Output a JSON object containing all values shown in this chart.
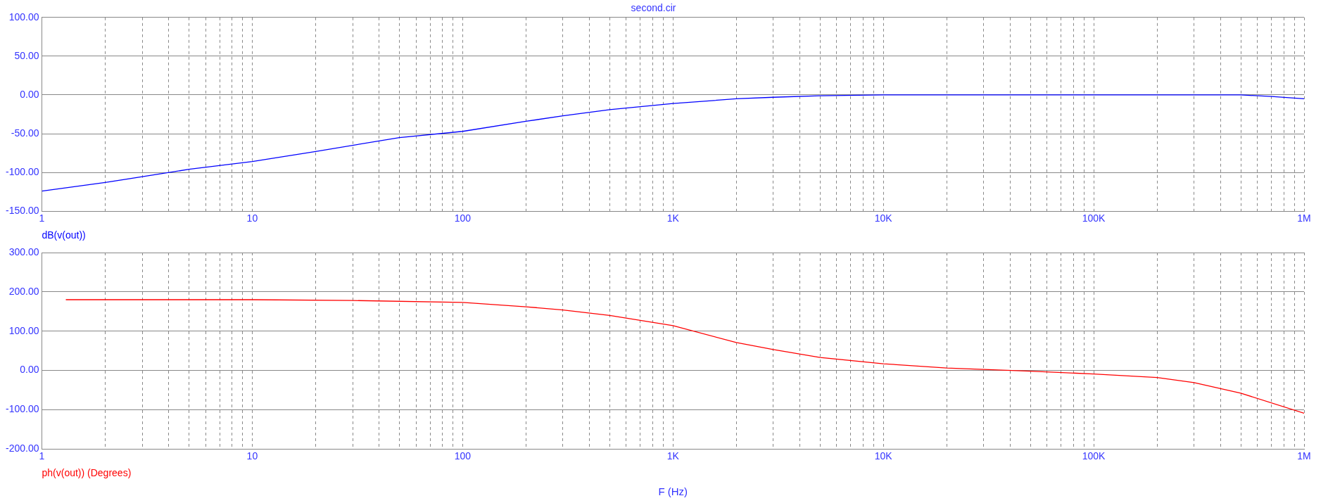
{
  "chart_data": [
    {
      "type": "line",
      "title": "second.cir",
      "log": "x",
      "grid": true,
      "legend": "bottom left",
      "marker": "none",
      "line_style": "solid",
      "x": [
        1,
        2,
        5,
        10,
        20,
        50,
        100,
        200,
        300,
        500,
        1000,
        2000,
        3000,
        5000,
        10000,
        20000,
        50000,
        100000,
        200000,
        500000,
        700000,
        1000000
      ],
      "series": [
        {
          "name": "dB(v(out))",
          "color": "#0000ff",
          "values": [
            -124,
            -113,
            -96,
            -86,
            -73,
            -55,
            -47,
            -34,
            -27,
            -19,
            -11,
            -5,
            -3,
            -1,
            0,
            0,
            0,
            0,
            0,
            0,
            -2,
            -5
          ]
        }
      ],
      "xlim": [
        1,
        1000000
      ],
      "xticks": [
        1,
        {
          "value": 2,
          "label": null
        },
        {
          "value": 3,
          "label": null
        },
        {
          "value": 4,
          "label": null
        },
        {
          "value": 5,
          "label": null
        },
        {
          "value": 6,
          "label": null
        },
        {
          "value": 7,
          "label": null
        },
        {
          "value": 8,
          "label": null
        },
        {
          "value": 9,
          "label": null
        },
        10,
        {
          "value": 20,
          "label": null
        },
        {
          "value": 30,
          "label": null
        },
        {
          "value": 40,
          "label": null
        },
        {
          "value": 50,
          "label": null
        },
        {
          "value": 60,
          "label": null
        },
        {
          "value": 70,
          "label": null
        },
        {
          "value": 80,
          "label": null
        },
        {
          "value": 90,
          "label": null
        },
        100,
        {
          "value": 200,
          "label": null
        },
        {
          "value": 300,
          "label": null
        },
        {
          "value": 400,
          "label": null
        },
        {
          "value": 500,
          "label": null
        },
        {
          "value": 600,
          "label": null
        },
        {
          "value": 700,
          "label": null
        },
        {
          "value": 800,
          "label": null
        },
        {
          "value": 900,
          "label": null
        },
        {
          "value": 1000,
          "label": "1K"
        },
        {
          "value": 2000,
          "label": null
        },
        {
          "value": 3000,
          "label": null
        },
        {
          "value": 4000,
          "label": null
        },
        {
          "value": 5000,
          "label": null
        },
        {
          "value": 6000,
          "label": null
        },
        {
          "value": 7000,
          "label": null
        },
        {
          "value": 8000,
          "label": null
        },
        {
          "value": 9000,
          "label": null
        },
        {
          "value": 10000,
          "label": "10K"
        },
        {
          "value": 20000,
          "label": null
        },
        {
          "value": 30000,
          "label": null
        },
        {
          "value": 40000,
          "label": null
        },
        {
          "value": 50000,
          "label": null
        },
        {
          "value": 60000,
          "label": null
        },
        {
          "value": 70000,
          "label": null
        },
        {
          "value": 80000,
          "label": null
        },
        {
          "value": 90000,
          "label": null
        },
        {
          "value": 100000,
          "label": "100K"
        },
        {
          "value": 200000,
          "label": null
        },
        {
          "value": 300000,
          "label": null
        },
        {
          "value": 400000,
          "label": null
        },
        {
          "value": 500000,
          "label": null
        },
        {
          "value": 600000,
          "label": null
        },
        {
          "value": 700000,
          "label": null
        },
        {
          "value": 800000,
          "label": null
        },
        {
          "value": 900000,
          "label": null
        },
        {
          "value": 1000000,
          "label": "1M"
        }
      ],
      "ylim": [
        -150,
        100
      ],
      "yticks": [
        {
          "value": -150,
          "label": "-150.00"
        },
        {
          "value": -100,
          "label": "-100.00"
        },
        {
          "value": -50,
          "label": "-50.00"
        },
        {
          "value": 0,
          "label": "0.00"
        },
        {
          "value": 50,
          "label": "50.00"
        },
        {
          "value": 100,
          "label": "100.00"
        }
      ]
    },
    {
      "type": "line",
      "xlabel": "F (Hz)",
      "log": "x",
      "grid": true,
      "legend": "bottom left",
      "marker": "none",
      "line_style": "solid",
      "x": [
        1.3,
        10,
        30,
        100,
        200,
        300,
        500,
        1000,
        2000,
        3000,
        5000,
        10000,
        20000,
        50000,
        100000,
        200000,
        300000,
        500000,
        1000000
      ],
      "series": [
        {
          "name": "ph(v(out)) (Degrees)",
          "color": "#ff0000",
          "values": [
            180,
            180,
            178,
            173,
            162,
            154,
            140,
            114,
            71,
            53,
            33,
            17,
            6,
            -2,
            -9,
            -18,
            -31,
            -58,
            -109
          ]
        }
      ],
      "xlim": [
        1,
        1000000
      ],
      "xticks": [
        1,
        {
          "value": 2,
          "label": null
        },
        {
          "value": 3,
          "label": null
        },
        {
          "value": 4,
          "label": null
        },
        {
          "value": 5,
          "label": null
        },
        {
          "value": 6,
          "label": null
        },
        {
          "value": 7,
          "label": null
        },
        {
          "value": 8,
          "label": null
        },
        {
          "value": 9,
          "label": null
        },
        10,
        {
          "value": 20,
          "label": null
        },
        {
          "value": 30,
          "label": null
        },
        {
          "value": 40,
          "label": null
        },
        {
          "value": 50,
          "label": null
        },
        {
          "value": 60,
          "label": null
        },
        {
          "value": 70,
          "label": null
        },
        {
          "value": 80,
          "label": null
        },
        {
          "value": 90,
          "label": null
        },
        100,
        {
          "value": 200,
          "label": null
        },
        {
          "value": 300,
          "label": null
        },
        {
          "value": 400,
          "label": null
        },
        {
          "value": 500,
          "label": null
        },
        {
          "value": 600,
          "label": null
        },
        {
          "value": 700,
          "label": null
        },
        {
          "value": 800,
          "label": null
        },
        {
          "value": 900,
          "label": null
        },
        {
          "value": 1000,
          "label": "1K"
        },
        {
          "value": 2000,
          "label": null
        },
        {
          "value": 3000,
          "label": null
        },
        {
          "value": 4000,
          "label": null
        },
        {
          "value": 5000,
          "label": null
        },
        {
          "value": 6000,
          "label": null
        },
        {
          "value": 7000,
          "label": null
        },
        {
          "value": 8000,
          "label": null
        },
        {
          "value": 9000,
          "label": null
        },
        {
          "value": 10000,
          "label": "10K"
        },
        {
          "value": 20000,
          "label": null
        },
        {
          "value": 30000,
          "label": null
        },
        {
          "value": 40000,
          "label": null
        },
        {
          "value": 50000,
          "label": null
        },
        {
          "value": 60000,
          "label": null
        },
        {
          "value": 70000,
          "label": null
        },
        {
          "value": 80000,
          "label": null
        },
        {
          "value": 90000,
          "label": null
        },
        {
          "value": 100000,
          "label": "100K"
        },
        {
          "value": 200000,
          "label": null
        },
        {
          "value": 300000,
          "label": null
        },
        {
          "value": 400000,
          "label": null
        },
        {
          "value": 500000,
          "label": null
        },
        {
          "value": 600000,
          "label": null
        },
        {
          "value": 700000,
          "label": null
        },
        {
          "value": 800000,
          "label": null
        },
        {
          "value": 900000,
          "label": null
        },
        {
          "value": 1000000,
          "label": "1M"
        }
      ],
      "ylim": [
        -200,
        300
      ],
      "yticks": [
        {
          "value": -200,
          "label": "-200.00"
        },
        {
          "value": -100,
          "label": "-100.00"
        },
        {
          "value": 0,
          "label": "0.00"
        },
        {
          "value": 100,
          "label": "100.00"
        },
        {
          "value": 200,
          "label": "200.00"
        },
        {
          "value": 300,
          "label": "300.00"
        }
      ]
    }
  ]
}
